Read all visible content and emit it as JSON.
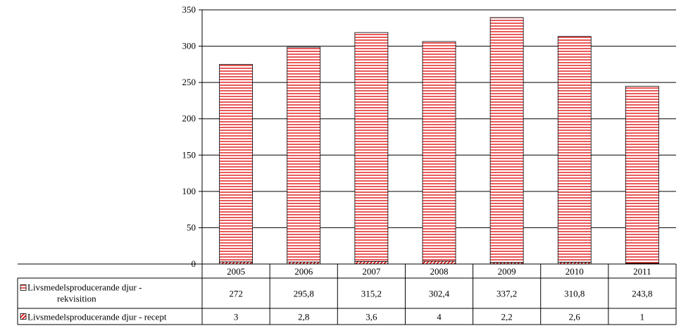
{
  "chart_data": {
    "type": "bar",
    "stacked": true,
    "categories": [
      "2005",
      "2006",
      "2007",
      "2008",
      "2009",
      "2010",
      "2011"
    ],
    "series": [
      {
        "name": "Livsmedelsproducerande djur - recept",
        "values": [
          3,
          2.8,
          3.6,
          4,
          2.2,
          2.6,
          1
        ],
        "labels": [
          "3",
          "2,8",
          "3,6",
          "4",
          "2,2",
          "2,6",
          "1"
        ],
        "pattern": "diagonal-hatch",
        "color": "#e00000"
      },
      {
        "name": "Livsmedelsproducerande djur - rekvisition",
        "values": [
          272,
          295.8,
          315.2,
          302.4,
          337.2,
          310.8,
          243.8
        ],
        "labels": [
          "272",
          "295,8",
          "315,2",
          "302,4",
          "337,2",
          "310,8",
          "243,8"
        ],
        "pattern": "horizontal-lines",
        "color": "#e00000"
      }
    ],
    "data_table_rows": [
      [
        "Livsmedelsproducerande djur -",
        "rekvisition"
      ],
      [
        "Livsmedelsproducerande djur - recept"
      ]
    ],
    "yticks": [
      "0",
      "50",
      "100",
      "150",
      "200",
      "250",
      "300",
      "350"
    ],
    "ylim": [
      0,
      350
    ],
    "grid": true,
    "legend": "data-table",
    "title": "",
    "xlabel": "",
    "ylabel": ""
  }
}
